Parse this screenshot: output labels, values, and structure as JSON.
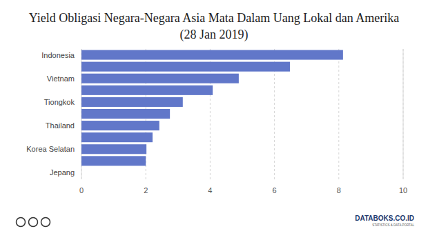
{
  "chart_data": {
    "type": "bar",
    "orientation": "horizontal",
    "title": "Yield Obligasi Negara-Negara Asia Mata Dalam Uang Lokal dan Amerika",
    "subtitle": "(28 Jan 2019)",
    "categories": [
      "Indonesia",
      null,
      "Vietnam",
      null,
      "Tiongkok",
      null,
      "Thailand",
      null,
      "Korea Selatan",
      null,
      "Jepang"
    ],
    "values": [
      8.13,
      6.48,
      4.89,
      4.08,
      3.15,
      2.75,
      2.42,
      2.21,
      2.02,
      2.0,
      0
    ],
    "color": "#6177c9",
    "xlim": [
      0,
      10
    ],
    "xticks": [
      0,
      2,
      4,
      6,
      8,
      10
    ],
    "grid": true,
    "annotations": [
      "DATABOKS.CO.ID",
      "STATISTICS & DATA PORTAL"
    ]
  }
}
